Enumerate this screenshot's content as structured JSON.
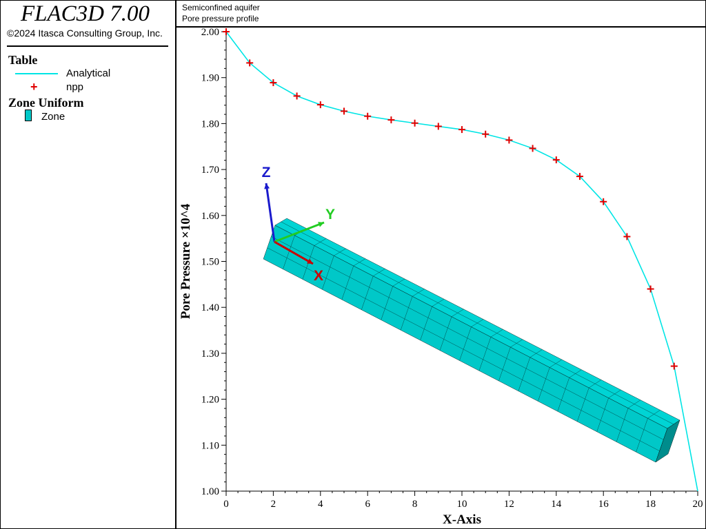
{
  "app": {
    "title": "FLAC3D 7.00",
    "copyright": "©2024 Itasca Consulting Group, Inc."
  },
  "legend": {
    "table_heading": "Table",
    "analytical_label": "Analytical",
    "npp_label": "npp",
    "zone_heading": "Zone Uniform",
    "zone_label": "Zone"
  },
  "plot": {
    "title_line1": "Semiconfined aquifer",
    "title_line2": "Pore pressure profile"
  },
  "axes_triad": {
    "x": "X",
    "y": "Y",
    "z": "Z"
  },
  "colors": {
    "analytical": "#00e5e5",
    "npp": "#e00000",
    "zone": "#00c8c8",
    "axis_x": "#cc0000",
    "axis_y": "#22cc22",
    "axis_z": "#1a1acc"
  },
  "chart_data": {
    "type": "line",
    "xlabel": "X-Axis",
    "ylabel": "Pore Pressure ×10^4",
    "xlim": [
      0,
      20
    ],
    "ylim": [
      1.0,
      2.0
    ],
    "x_ticks": [
      "0",
      "2",
      "4",
      "6",
      "8",
      "10",
      "12",
      "14",
      "16",
      "18",
      "20"
    ],
    "y_ticks": [
      "1.00",
      "1.10",
      "1.20",
      "1.30",
      "1.40",
      "1.50",
      "1.60",
      "1.70",
      "1.80",
      "1.90",
      "2.00"
    ],
    "series": [
      {
        "name": "Analytical",
        "style": "line",
        "x": [
          0,
          1,
          2,
          3,
          4,
          5,
          6,
          7,
          8,
          9,
          10,
          11,
          12,
          13,
          14,
          15,
          16,
          17,
          18,
          19,
          20
        ],
        "y": [
          2.0,
          1.932,
          1.889,
          1.86,
          1.841,
          1.827,
          1.816,
          1.808,
          1.801,
          1.794,
          1.787,
          1.777,
          1.764,
          1.746,
          1.721,
          1.685,
          1.63,
          1.554,
          1.44,
          1.272,
          1.0
        ]
      },
      {
        "name": "npp",
        "style": "plus",
        "x": [
          0,
          1,
          2,
          3,
          4,
          5,
          6,
          7,
          8,
          9,
          10,
          11,
          12,
          13,
          14,
          15,
          16,
          17,
          18,
          19
        ],
        "y": [
          2.0,
          1.932,
          1.889,
          1.86,
          1.841,
          1.827,
          1.816,
          1.808,
          1.801,
          1.794,
          1.787,
          1.777,
          1.764,
          1.746,
          1.721,
          1.685,
          1.63,
          1.554,
          1.44,
          1.272
        ]
      }
    ]
  }
}
